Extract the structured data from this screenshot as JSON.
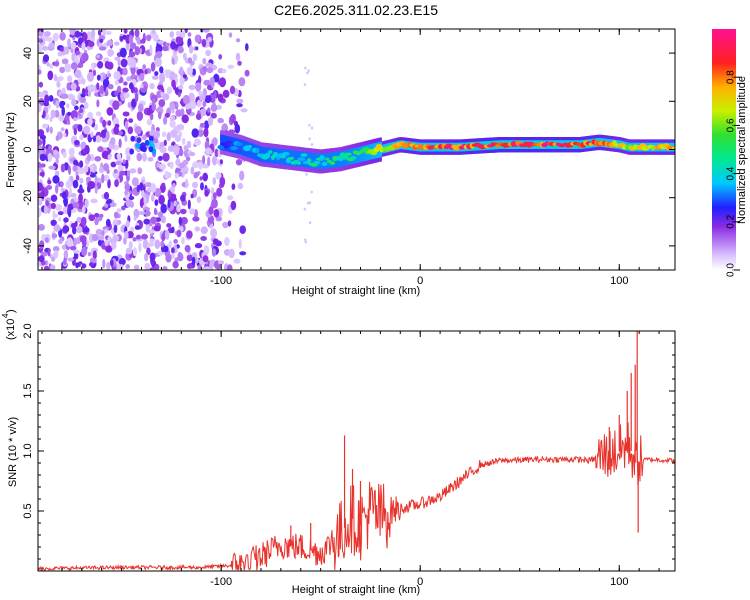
{
  "title": "C2E6.2025.311.02.23.E15",
  "chart_data": [
    {
      "type": "heatmap",
      "name": "spectrogram",
      "xlabel": "Height of straight line (km)",
      "ylabel": "Frequency (Hz)",
      "xlim": [
        -192,
        128
      ],
      "ylim": [
        -50,
        50
      ],
      "x_ticks": [
        -100,
        0,
        100
      ],
      "y_ticks": [
        -40,
        -20,
        0,
        20,
        40
      ],
      "colorbar": {
        "label": "Normalized spectral amplitude",
        "range": [
          0.0,
          1.0
        ],
        "ticks": [
          0.0,
          0.2,
          0.4,
          0.6,
          0.8
        ]
      },
      "ridge": {
        "x": [
          -145,
          -130,
          -100,
          -90,
          -80,
          -70,
          -60,
          -50,
          -40,
          -30,
          -20,
          -10,
          0,
          20,
          40,
          60,
          80,
          90,
          100,
          105,
          110,
          128
        ],
        "frequency": [
          1,
          2,
          3,
          1,
          -2,
          -3,
          -4,
          -5,
          -4,
          -2,
          0,
          2,
          1,
          1,
          2,
          2,
          2,
          3,
          2,
          1,
          1,
          1
        ],
        "amplitude": [
          0.25,
          0.3,
          0.3,
          0.35,
          0.4,
          0.45,
          0.45,
          0.5,
          0.5,
          0.6,
          0.75,
          0.85,
          0.9,
          0.95,
          1.0,
          1.0,
          0.95,
          0.9,
          0.8,
          0.75,
          0.8,
          0.85
        ]
      }
    },
    {
      "type": "line",
      "name": "snr",
      "xlabel": "Height of straight line (km)",
      "ylabel": "SNR (10 * v/v)",
      "y_scale_label": "(x10",
      "y_scale_exp": "4",
      "xlim": [
        -192,
        128
      ],
      "ylim": [
        0,
        2.0
      ],
      "x_ticks": [
        -100,
        0,
        100
      ],
      "y_ticks": [
        0.5,
        1.0,
        1.5,
        2.0
      ],
      "y_tick_labels": [
        "0.5",
        "1.0",
        "1.5",
        "2.0"
      ],
      "color": "#e8322c",
      "series": [
        {
          "name": "SNR",
          "x": [
            -192,
            -150,
            -110,
            -90,
            -80,
            -70,
            -60,
            -50,
            -40,
            -35,
            -30,
            -25,
            -20,
            -15,
            -10,
            -5,
            0,
            10,
            20,
            30,
            40,
            60,
            80,
            85,
            90,
            95,
            100,
            105,
            108,
            110,
            115,
            128
          ],
          "y": [
            0.02,
            0.03,
            0.03,
            0.05,
            0.12,
            0.22,
            0.2,
            0.15,
            0.3,
            0.45,
            0.38,
            0.5,
            0.45,
            0.5,
            0.52,
            0.54,
            0.56,
            0.62,
            0.75,
            0.88,
            0.92,
            0.93,
            0.93,
            0.92,
            0.95,
            0.98,
            1.0,
            1.05,
            0.9,
            0.92,
            0.93,
            0.92
          ]
        }
      ],
      "spikes": [
        {
          "x": -65,
          "y": 0.38
        },
        {
          "x": -55,
          "y": 0.4
        },
        {
          "x": -38,
          "y": 1.13
        },
        {
          "x": -34,
          "y": 0.85
        },
        {
          "x": -30,
          "y": 0.75
        },
        {
          "x": -22,
          "y": 0.55
        },
        {
          "x": 95,
          "y": 1.2
        },
        {
          "x": 100,
          "y": 1.3
        },
        {
          "x": 104,
          "y": 1.5
        },
        {
          "x": 106,
          "y": 1.65
        },
        {
          "x": 108,
          "y": 1.72
        },
        {
          "x": 109,
          "y": 2.0
        },
        {
          "x": 109.5,
          "y": 0.32
        }
      ]
    }
  ]
}
